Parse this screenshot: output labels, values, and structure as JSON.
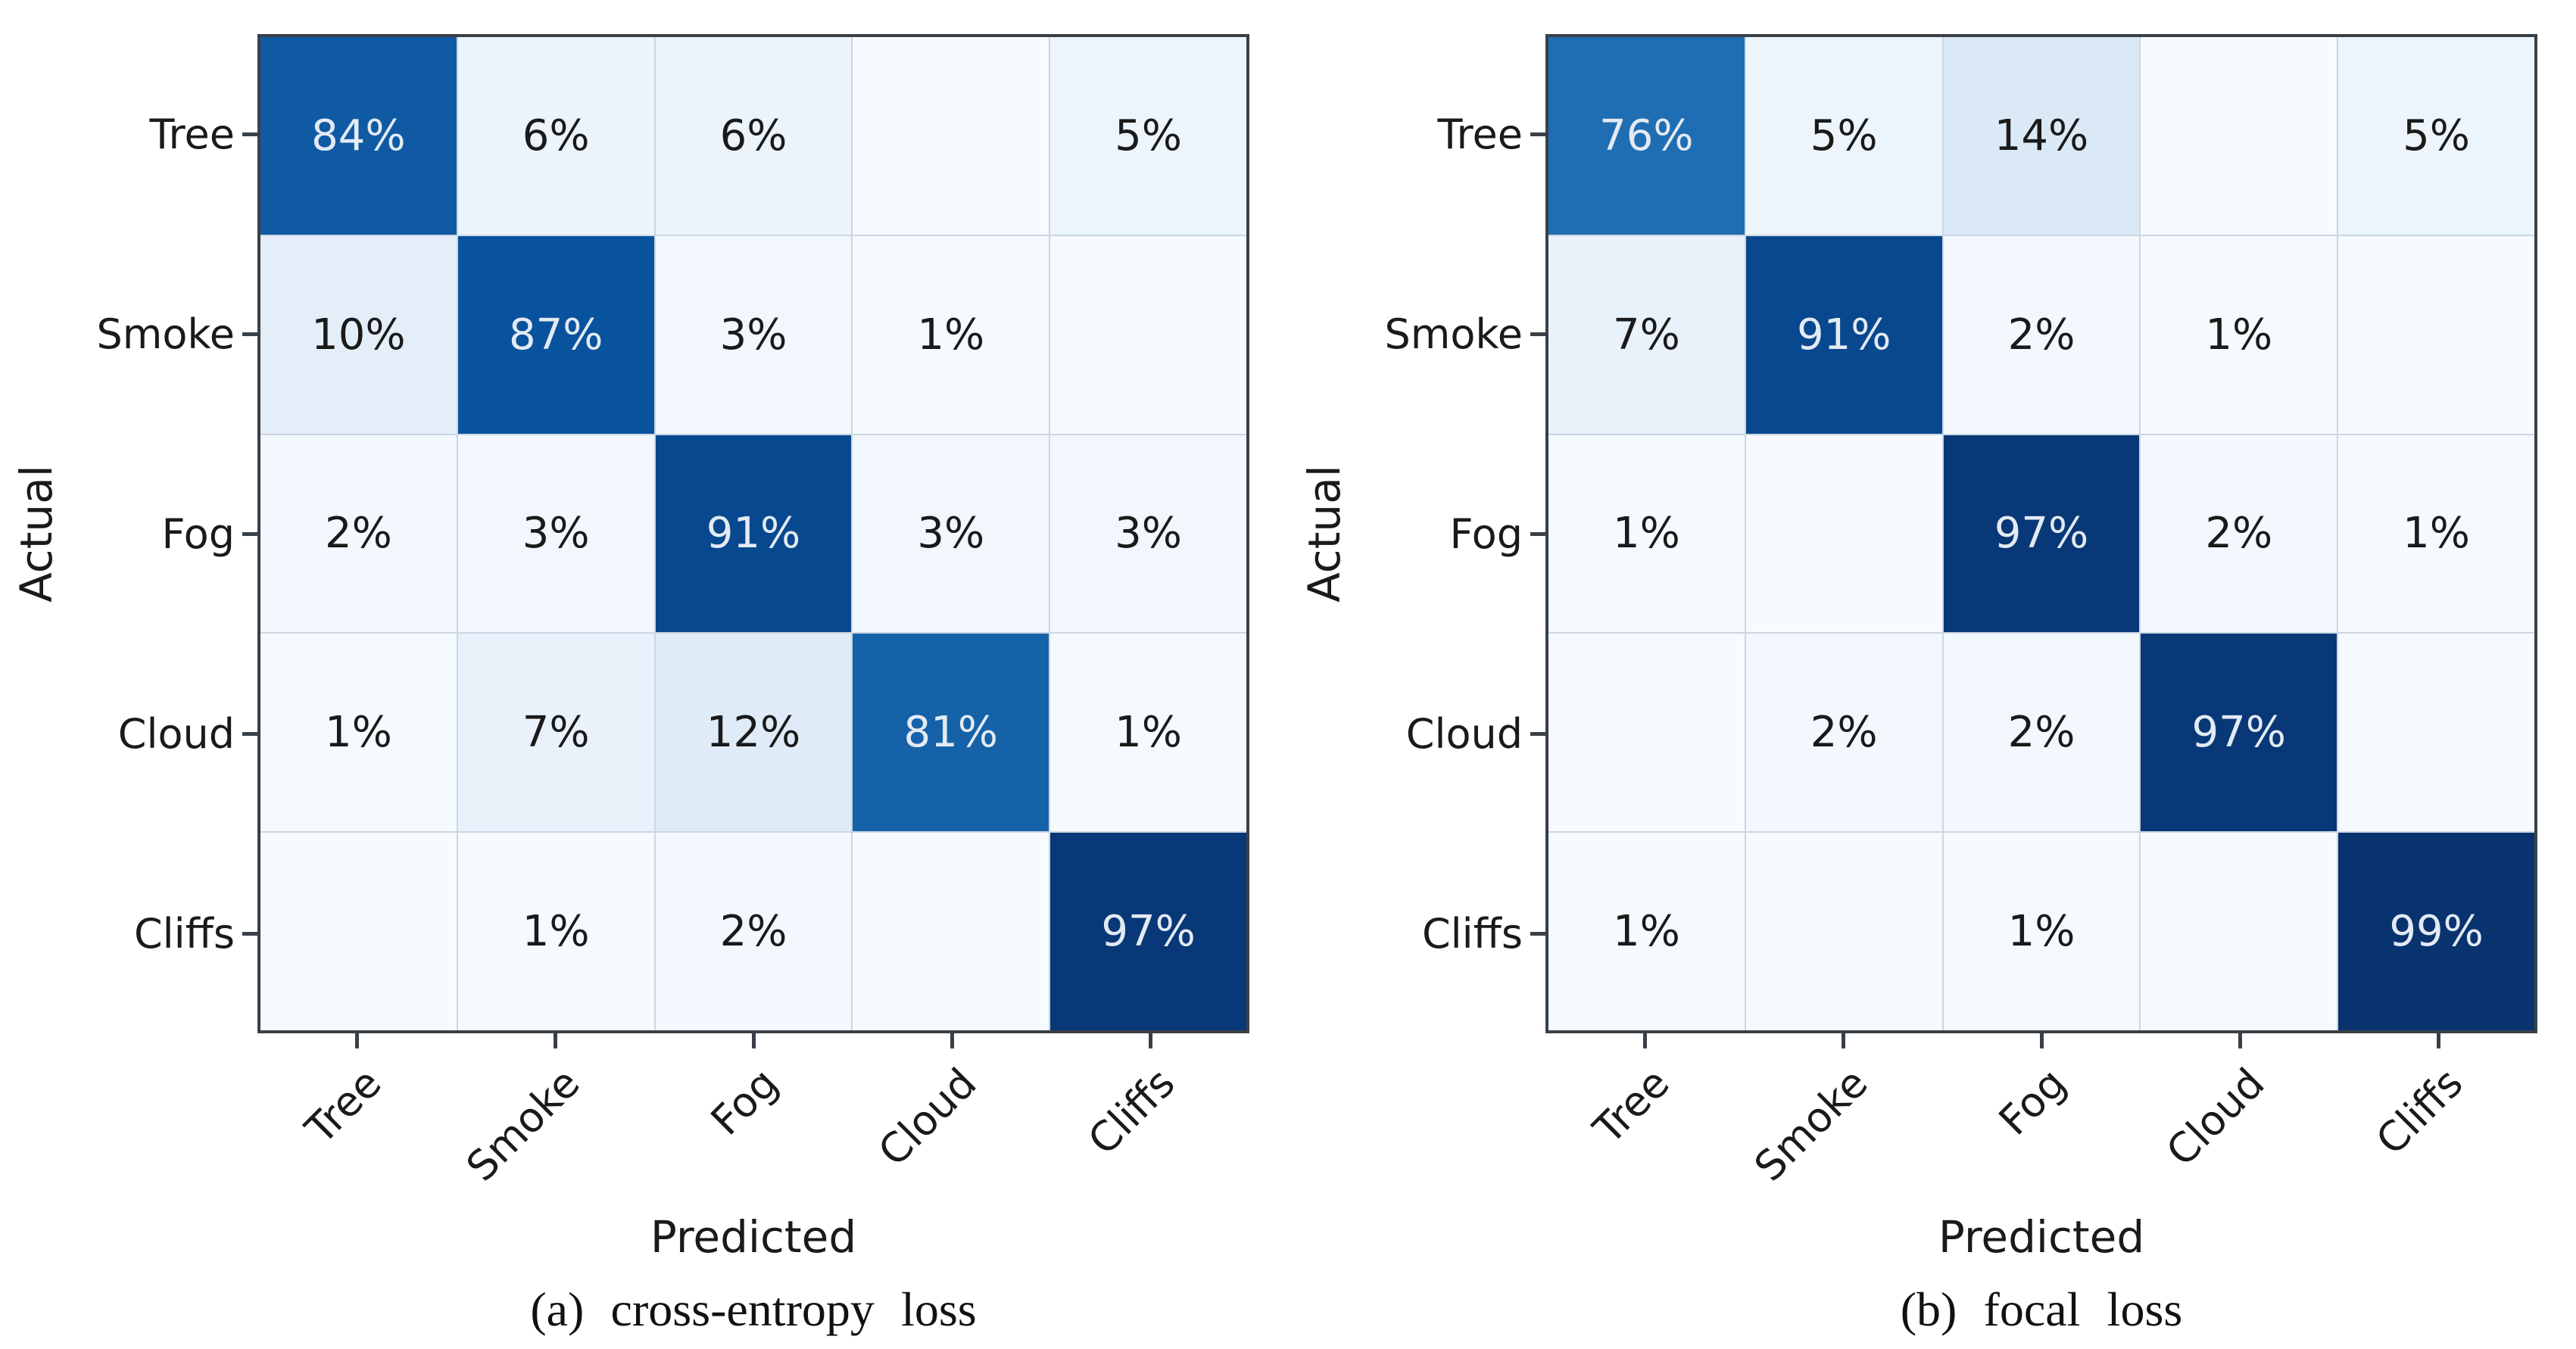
{
  "chart_data": [
    {
      "type": "heatmap",
      "caption": "(a) cross-entropy loss",
      "xlabel": "Predicted",
      "ylabel": "Actual",
      "x_categories": [
        "Tree",
        "Smoke",
        "Fog",
        "Cloud",
        "Cliffs"
      ],
      "y_categories": [
        "Tree",
        "Smoke",
        "Fog",
        "Cloud",
        "Cliffs"
      ],
      "values_percent": [
        [
          84,
          6,
          6,
          null,
          5
        ],
        [
          10,
          87,
          3,
          1,
          null
        ],
        [
          2,
          3,
          91,
          3,
          3
        ],
        [
          1,
          7,
          12,
          81,
          1
        ],
        [
          null,
          1,
          2,
          null,
          97
        ]
      ],
      "cell_labels": [
        [
          "84%",
          "6%",
          "6%",
          "",
          "5%"
        ],
        [
          "10%",
          "87%",
          "3%",
          "1%",
          ""
        ],
        [
          "2%",
          "3%",
          "91%",
          "3%",
          "3%"
        ],
        [
          "1%",
          "7%",
          "12%",
          "81%",
          "1%"
        ],
        [
          "",
          "1%",
          "2%",
          "",
          "97%"
        ]
      ],
      "colormap": "Blues",
      "value_range": [
        0,
        100
      ]
    },
    {
      "type": "heatmap",
      "caption": "(b) focal loss",
      "xlabel": "Predicted",
      "ylabel": "Actual",
      "x_categories": [
        "Tree",
        "Smoke",
        "Fog",
        "Cloud",
        "Cliffs"
      ],
      "y_categories": [
        "Tree",
        "Smoke",
        "Fog",
        "Cloud",
        "Cliffs"
      ],
      "values_percent": [
        [
          76,
          5,
          14,
          null,
          5
        ],
        [
          7,
          91,
          2,
          1,
          null
        ],
        [
          1,
          null,
          97,
          2,
          1
        ],
        [
          null,
          2,
          2,
          97,
          null
        ],
        [
          1,
          null,
          1,
          null,
          99
        ]
      ],
      "cell_labels": [
        [
          "76%",
          "5%",
          "14%",
          "",
          "5%"
        ],
        [
          "7%",
          "91%",
          "2%",
          "1%",
          ""
        ],
        [
          "1%",
          "",
          "97%",
          "2%",
          "1%"
        ],
        [
          "",
          "2%",
          "2%",
          "97%",
          ""
        ],
        [
          "1%",
          "",
          "1%",
          "",
          "99%"
        ]
      ],
      "colormap": "Blues",
      "value_range": [
        0,
        100
      ]
    }
  ],
  "theme": {
    "colormap_stops": [
      "#f7fbff",
      "#deebf7",
      "#c6dbef",
      "#9ecae1",
      "#6baed6",
      "#4292c6",
      "#2171b5",
      "#08519c",
      "#08306b"
    ],
    "spine_color": "#3a4047",
    "gridline_color": "#ccd6e2",
    "text_dark": "#1a1a1a",
    "text_light": "#e4eaf3",
    "background": "#ffffff"
  }
}
